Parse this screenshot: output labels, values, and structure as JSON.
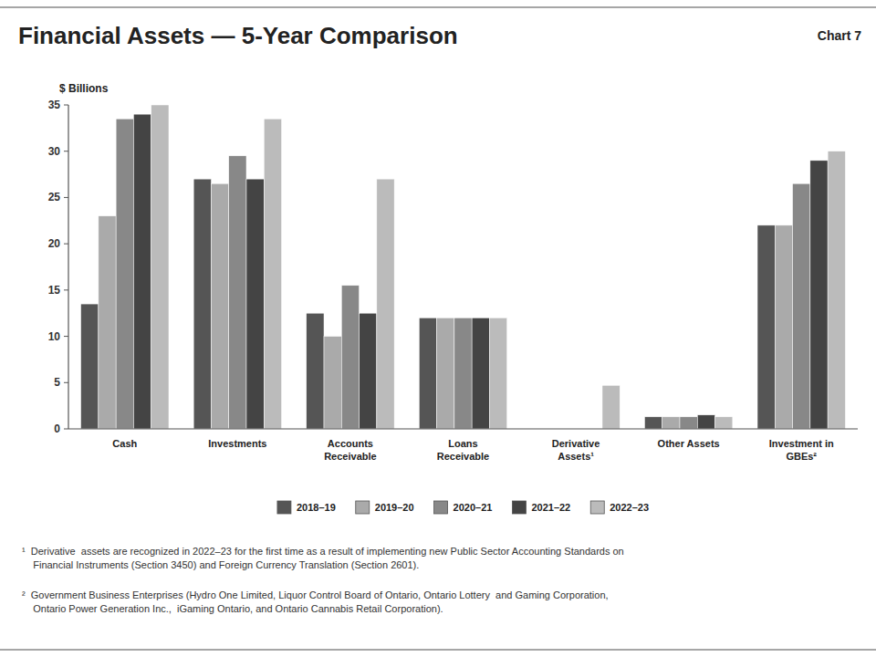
{
  "chart_data": {
    "type": "bar",
    "title": "Financial Assets — 5-Year Comparison",
    "ylabel": "$ Billions",
    "annotations": [
      "Chart 7",
      "¹  Derivative  assets are recognized in 2022–23 for the first time as a result of implementing new Public Sector Accounting Standards on\n    Financial Instruments (Section 3450) and Foreign Currency Translation (Section 2601).",
      "²  Government Business Enterprises (Hydro One Limited, Liquor Control Board of Ontario, Ontario Lottery  and Gaming Corporation,\n    Ontario Power Generation Inc.,  iGaming Ontario, and Ontario Cannabis Retail Corporation)."
    ],
    "categories": [
      "Cash",
      "Investments",
      "Accounts\nReceivable",
      "Loans\nReceivable",
      "Derivative\nAssets¹",
      "Other Assets",
      "Investment in\nGBEs²"
    ],
    "series": [
      {
        "name": "2018–19",
        "color": "#555555",
        "values": [
          13.5,
          27.0,
          12.5,
          12.0,
          0.0,
          1.3,
          22.0
        ]
      },
      {
        "name": "2019–20",
        "color": "#aaaaaa",
        "values": [
          23.0,
          26.5,
          10.0,
          12.0,
          0.0,
          1.3,
          22.0
        ]
      },
      {
        "name": "2020–21",
        "color": "#888888",
        "values": [
          33.5,
          29.5,
          15.5,
          12.0,
          0.0,
          1.3,
          26.5
        ]
      },
      {
        "name": "2021–22",
        "color": "#444444",
        "values": [
          34.0,
          27.0,
          12.5,
          12.0,
          0.0,
          1.5,
          29.0
        ]
      },
      {
        "name": "2022–23",
        "color": "#bbbbbb",
        "values": [
          35.0,
          33.5,
          27.0,
          12.0,
          4.7,
          1.3,
          30.0
        ]
      }
    ],
    "ylim": [
      0,
      35
    ],
    "yticks": [
      0,
      5,
      10,
      15,
      20,
      25,
      30,
      35
    ],
    "grid": false,
    "legend": "bottom"
  }
}
